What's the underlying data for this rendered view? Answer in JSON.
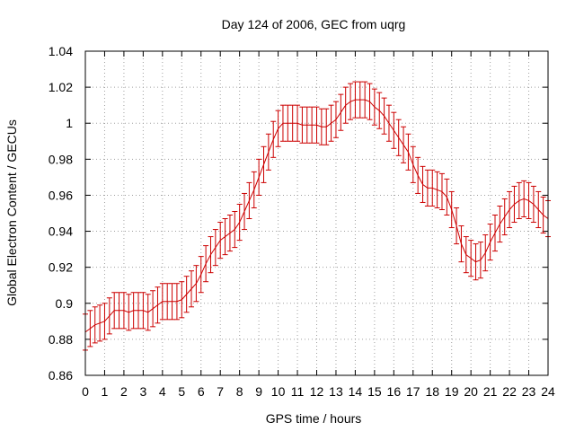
{
  "chart_data": {
    "type": "line",
    "title": "Day 124 of 2006, GEC from uqrg",
    "xlabel": "GPS time / hours",
    "ylabel": "Global Electron Content / GECUs",
    "xlim": [
      0,
      24
    ],
    "ylim": [
      0.86,
      1.04
    ],
    "xticks": [
      0,
      1,
      2,
      3,
      4,
      5,
      6,
      7,
      8,
      9,
      10,
      11,
      12,
      13,
      14,
      15,
      16,
      17,
      18,
      19,
      20,
      21,
      22,
      23,
      24
    ],
    "yticks": [
      "0.86",
      "0.88",
      "0.9",
      "0.92",
      "0.94",
      "0.96",
      "0.98",
      "1",
      "1.02",
      "1.04"
    ],
    "grid": true,
    "error_bar": 0.01,
    "series": [
      {
        "color": "#cc0000",
        "x": [
          0,
          0.25,
          0.5,
          0.75,
          1,
          1.25,
          1.5,
          1.75,
          2,
          2.25,
          2.5,
          2.75,
          3,
          3.25,
          3.5,
          3.75,
          4,
          4.25,
          4.5,
          4.75,
          5,
          5.25,
          5.5,
          5.75,
          6,
          6.25,
          6.5,
          6.75,
          7,
          7.25,
          7.5,
          7.75,
          8,
          8.25,
          8.5,
          8.75,
          9,
          9.25,
          9.5,
          9.75,
          10,
          10.25,
          10.5,
          10.75,
          11,
          11.25,
          11.5,
          11.75,
          12,
          12.25,
          12.5,
          12.75,
          13,
          13.25,
          13.5,
          13.75,
          14,
          14.25,
          14.5,
          14.75,
          15,
          15.25,
          15.5,
          15.75,
          16,
          16.25,
          16.5,
          16.75,
          17,
          17.25,
          17.5,
          17.75,
          18,
          18.25,
          18.5,
          18.75,
          19,
          19.25,
          19.5,
          19.75,
          20,
          20.25,
          20.5,
          20.75,
          21,
          21.25,
          21.5,
          21.75,
          22,
          22.25,
          22.5,
          22.75,
          23,
          23.25,
          23.5,
          23.75,
          24
        ],
        "y": [
          0.884,
          0.886,
          0.888,
          0.889,
          0.89,
          0.893,
          0.896,
          0.896,
          0.896,
          0.895,
          0.896,
          0.896,
          0.896,
          0.895,
          0.897,
          0.899,
          0.901,
          0.901,
          0.901,
          0.901,
          0.902,
          0.905,
          0.908,
          0.911,
          0.916,
          0.922,
          0.927,
          0.931,
          0.935,
          0.937,
          0.939,
          0.941,
          0.945,
          0.951,
          0.957,
          0.963,
          0.97,
          0.977,
          0.984,
          0.991,
          0.997,
          1.0,
          1.0,
          1.0,
          1.0,
          0.999,
          0.999,
          0.999,
          0.999,
          0.998,
          0.998,
          1.0,
          1.002,
          1.006,
          1.01,
          1.012,
          1.013,
          1.013,
          1.013,
          1.012,
          1.009,
          1.007,
          1.004,
          1.0,
          0.996,
          0.992,
          0.988,
          0.984,
          0.977,
          0.971,
          0.966,
          0.964,
          0.964,
          0.963,
          0.962,
          0.959,
          0.952,
          0.943,
          0.933,
          0.927,
          0.925,
          0.923,
          0.924,
          0.928,
          0.934,
          0.939,
          0.944,
          0.948,
          0.952,
          0.955,
          0.957,
          0.958,
          0.957,
          0.955,
          0.952,
          0.949,
          0.947
        ]
      }
    ]
  }
}
